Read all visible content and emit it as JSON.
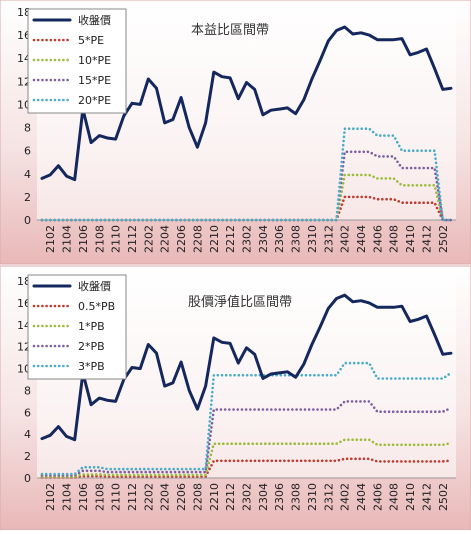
{
  "chart_data": [
    {
      "type": "line",
      "title": "本益比區間帶",
      "categories": [
        null,
        "2102",
        null,
        "2104",
        null,
        "2106",
        null,
        "2108",
        null,
        "2110",
        null,
        "2112",
        null,
        "2202",
        null,
        "2204",
        null,
        "2206",
        null,
        "2208",
        null,
        "2210",
        null,
        "2212",
        null,
        "2302",
        null,
        "2304",
        null,
        "2306",
        null,
        "2308",
        null,
        "2310",
        null,
        "2312",
        null,
        "2402",
        null,
        "2404",
        null,
        "2406",
        null,
        "2408",
        null,
        "2410",
        null,
        "2412",
        null,
        "2502",
        null
      ],
      "ylim": [
        0,
        18
      ],
      "yticks": [
        0,
        2,
        4,
        6,
        8,
        10,
        12,
        14,
        16,
        18
      ],
      "grid": false,
      "legend": "top-left",
      "series": [
        {
          "name": "收盤價",
          "color": "#15285e",
          "style": "solid",
          "values": [
            3.6,
            3.9,
            4.7,
            3.8,
            3.5,
            9.6,
            6.7,
            7.3,
            7.1,
            7.0,
            9.0,
            10.1,
            10.0,
            12.2,
            11.4,
            8.4,
            8.7,
            10.6,
            8.0,
            6.3,
            8.4,
            12.8,
            12.4,
            12.3,
            10.5,
            11.9,
            11.3,
            9.1,
            9.5,
            9.6,
            9.7,
            9.2,
            10.4,
            12.2,
            13.8,
            15.5,
            16.4,
            16.7,
            16.1,
            16.2,
            16.0,
            15.6,
            15.6,
            15.6,
            15.7,
            14.3,
            14.5,
            14.8,
            13.1,
            11.3,
            11.4
          ]
        },
        {
          "name": "5*PE",
          "color": "#c0392b",
          "style": "dotted",
          "values": [
            0,
            0,
            0,
            0,
            0,
            0,
            0,
            0,
            0,
            0,
            0,
            0,
            0,
            0,
            0,
            0,
            0,
            0,
            0,
            0,
            0,
            0,
            0,
            0,
            0,
            0,
            0,
            0,
            0,
            0,
            0,
            0,
            0,
            0,
            0,
            0,
            0,
            2.0,
            2.0,
            2.0,
            2.0,
            1.8,
            1.8,
            1.8,
            1.5,
            1.5,
            1.5,
            1.5,
            1.5,
            0,
            0
          ]
        },
        {
          "name": "10*PE",
          "color": "#9bbb3b",
          "style": "dotted",
          "values": [
            0,
            0,
            0,
            0,
            0,
            0,
            0,
            0,
            0,
            0,
            0,
            0,
            0,
            0,
            0,
            0,
            0,
            0,
            0,
            0,
            0,
            0,
            0,
            0,
            0,
            0,
            0,
            0,
            0,
            0,
            0,
            0,
            0,
            0,
            0,
            0,
            0,
            3.9,
            3.9,
            3.9,
            3.9,
            3.6,
            3.6,
            3.6,
            3.0,
            3.0,
            3.0,
            3.0,
            3.0,
            0,
            0
          ]
        },
        {
          "name": "15*PE",
          "color": "#7d5fa0",
          "style": "dotted",
          "values": [
            0,
            0,
            0,
            0,
            0,
            0,
            0,
            0,
            0,
            0,
            0,
            0,
            0,
            0,
            0,
            0,
            0,
            0,
            0,
            0,
            0,
            0,
            0,
            0,
            0,
            0,
            0,
            0,
            0,
            0,
            0,
            0,
            0,
            0,
            0,
            0,
            0,
            5.9,
            5.9,
            5.9,
            5.9,
            5.5,
            5.5,
            5.5,
            4.5,
            4.5,
            4.5,
            4.5,
            4.5,
            0,
            0
          ]
        },
        {
          "name": "20*PE",
          "color": "#4bacc6",
          "style": "dotted",
          "values": [
            0,
            0,
            0,
            0,
            0,
            0,
            0,
            0,
            0,
            0,
            0,
            0,
            0,
            0,
            0,
            0,
            0,
            0,
            0,
            0,
            0,
            0,
            0,
            0,
            0,
            0,
            0,
            0,
            0,
            0,
            0,
            0,
            0,
            0,
            0,
            0,
            0,
            7.9,
            7.9,
            7.9,
            7.9,
            7.3,
            7.3,
            7.3,
            6.0,
            6.0,
            6.0,
            6.0,
            6.0,
            0,
            0
          ]
        }
      ]
    },
    {
      "type": "line",
      "title": "股價淨值比區間帶",
      "categories": [
        null,
        "2102",
        null,
        "2104",
        null,
        "2106",
        null,
        "2108",
        null,
        "2110",
        null,
        "2112",
        null,
        "2202",
        null,
        "2204",
        null,
        "2206",
        null,
        "2208",
        null,
        "2210",
        null,
        "2212",
        null,
        "2302",
        null,
        "2304",
        null,
        "2306",
        null,
        "2308",
        null,
        "2310",
        null,
        "2312",
        null,
        "2402",
        null,
        "2404",
        null,
        "2406",
        null,
        "2408",
        null,
        "2410",
        null,
        "2412",
        null,
        "2502",
        null
      ],
      "ylim": [
        0,
        18
      ],
      "yticks": [
        0,
        2,
        4,
        6,
        8,
        10,
        12,
        14,
        16,
        18
      ],
      "grid": false,
      "legend": "top-left",
      "series": [
        {
          "name": "收盤價",
          "color": "#15285e",
          "style": "solid",
          "values": [
            3.6,
            3.9,
            4.7,
            3.8,
            3.5,
            9.6,
            6.7,
            7.3,
            7.1,
            7.0,
            9.0,
            10.1,
            10.0,
            12.2,
            11.4,
            8.4,
            8.7,
            10.6,
            8.0,
            6.3,
            8.4,
            12.8,
            12.4,
            12.3,
            10.5,
            11.9,
            11.3,
            9.1,
            9.5,
            9.6,
            9.7,
            9.2,
            10.4,
            12.2,
            13.8,
            15.5,
            16.4,
            16.7,
            16.1,
            16.2,
            16.0,
            15.6,
            15.6,
            15.6,
            15.7,
            14.3,
            14.5,
            14.8,
            13.1,
            11.3,
            11.4
          ]
        },
        {
          "name": "0.5*PB",
          "color": "#c0392b",
          "style": "dotted",
          "values": [
            0.06,
            0.06,
            0.06,
            0.06,
            0.06,
            0.17,
            0.17,
            0.17,
            0.14,
            0.14,
            0.14,
            0.14,
            0.14,
            0.14,
            0.14,
            0.14,
            0.14,
            0.14,
            0.14,
            0.14,
            0.14,
            1.57,
            1.57,
            1.57,
            1.57,
            1.57,
            1.57,
            1.57,
            1.57,
            1.57,
            1.57,
            1.57,
            1.57,
            1.57,
            1.57,
            1.57,
            1.57,
            1.75,
            1.75,
            1.75,
            1.75,
            1.52,
            1.52,
            1.52,
            1.52,
            1.52,
            1.52,
            1.52,
            1.52,
            1.52,
            1.6
          ]
        },
        {
          "name": "1*PB",
          "color": "#9bbb3b",
          "style": "dotted",
          "values": [
            0.12,
            0.12,
            0.12,
            0.12,
            0.12,
            0.33,
            0.33,
            0.33,
            0.27,
            0.27,
            0.27,
            0.27,
            0.27,
            0.27,
            0.27,
            0.27,
            0.27,
            0.27,
            0.27,
            0.27,
            0.27,
            3.13,
            3.13,
            3.13,
            3.13,
            3.13,
            3.13,
            3.13,
            3.13,
            3.13,
            3.13,
            3.13,
            3.13,
            3.13,
            3.13,
            3.13,
            3.13,
            3.5,
            3.5,
            3.5,
            3.5,
            3.03,
            3.03,
            3.03,
            3.03,
            3.03,
            3.03,
            3.03,
            3.03,
            3.03,
            3.2
          ]
        },
        {
          "name": "2*PB",
          "color": "#7d5fa0",
          "style": "dotted",
          "values": [
            0.24,
            0.24,
            0.24,
            0.24,
            0.24,
            0.66,
            0.66,
            0.66,
            0.54,
            0.54,
            0.54,
            0.54,
            0.54,
            0.54,
            0.54,
            0.54,
            0.54,
            0.54,
            0.54,
            0.54,
            0.54,
            6.26,
            6.26,
            6.26,
            6.26,
            6.26,
            6.26,
            6.26,
            6.26,
            6.26,
            6.26,
            6.26,
            6.26,
            6.26,
            6.26,
            6.26,
            6.26,
            7.0,
            7.0,
            7.0,
            7.0,
            6.06,
            6.06,
            6.06,
            6.06,
            6.06,
            6.06,
            6.06,
            6.06,
            6.06,
            6.4
          ]
        },
        {
          "name": "3*PB",
          "color": "#4bacc6",
          "style": "dotted",
          "values": [
            0.36,
            0.36,
            0.36,
            0.36,
            0.36,
            0.99,
            0.99,
            0.99,
            0.81,
            0.81,
            0.81,
            0.81,
            0.81,
            0.81,
            0.81,
            0.81,
            0.81,
            0.81,
            0.81,
            0.81,
            0.81,
            9.39,
            9.39,
            9.39,
            9.39,
            9.39,
            9.39,
            9.39,
            9.39,
            9.39,
            9.39,
            9.39,
            9.39,
            9.39,
            9.39,
            9.39,
            9.39,
            10.5,
            10.5,
            10.5,
            10.5,
            9.09,
            9.09,
            9.09,
            9.09,
            9.09,
            9.09,
            9.09,
            9.09,
            9.09,
            9.6
          ]
        }
      ]
    }
  ]
}
